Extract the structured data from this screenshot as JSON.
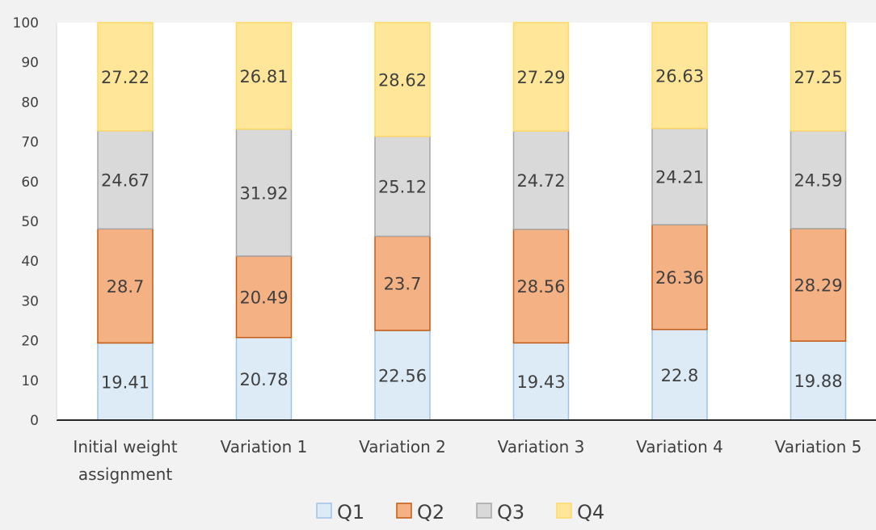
{
  "chart_data": {
    "type": "bar",
    "stacked": true,
    "categories": [
      "Initial weight assignment",
      "Variation 1",
      "Variation 2",
      "Variation 3",
      "Variation 4",
      "Variation 5"
    ],
    "series": [
      {
        "name": "Q1",
        "color": "#ddebf7",
        "stroke": "#9dc3e6",
        "values": [
          19.41,
          20.78,
          22.56,
          19.43,
          22.8,
          19.88
        ]
      },
      {
        "name": "Q2",
        "color": "#f4b183",
        "stroke": "#c55a11",
        "values": [
          28.7,
          20.49,
          23.7,
          28.56,
          26.36,
          28.29
        ]
      },
      {
        "name": "Q3",
        "color": "#d9d9d9",
        "stroke": "#a6a6a6",
        "values": [
          24.67,
          31.92,
          25.12,
          24.72,
          24.21,
          24.59
        ]
      },
      {
        "name": "Q4",
        "color": "#ffe699",
        "stroke": "#ffd966",
        "values": [
          27.22,
          26.81,
          28.62,
          27.29,
          26.63,
          27.25
        ]
      }
    ],
    "ylim": [
      0,
      100
    ],
    "yticks": [
      0,
      10,
      20,
      30,
      40,
      50,
      60,
      70,
      80,
      90,
      100
    ],
    "title": "",
    "xlabel": "",
    "ylabel": "",
    "legend_position": "bottom",
    "grid": false
  }
}
